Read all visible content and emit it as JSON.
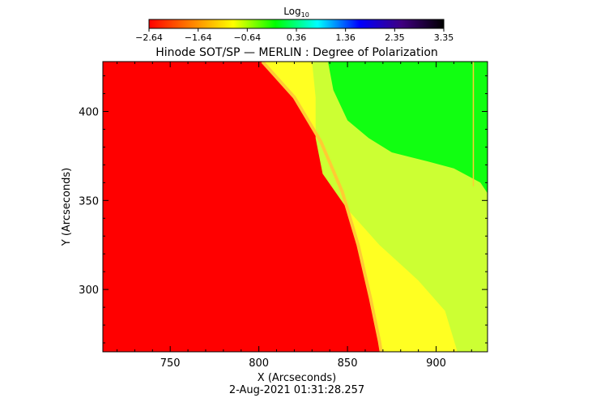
{
  "chart_data": {
    "type": "heatmap",
    "title": "Hinode SOT/SP — MERLIN : Degree of Polarization",
    "xlabel": "X (Arcseconds)",
    "ylabel": "Y (Arcseconds)",
    "timestamp": "2-Aug-2021 01:31:28.257",
    "xlim": [
      712,
      929
    ],
    "ylim": [
      265,
      428
    ],
    "x_ticks": [
      750,
      800,
      850,
      900
    ],
    "y_ticks": [
      300,
      350,
      400
    ],
    "colorbar": {
      "label": "Log",
      "label_subscript": "10",
      "range": [
        -2.64,
        3.35
      ],
      "ticks": [
        "−2.64",
        "−1.64",
        "−0.64",
        "0.36",
        "1.36",
        "2.35",
        "3.35"
      ],
      "colors": [
        "#ff0000",
        "#ff8000",
        "#ffff00",
        "#00ff00",
        "#00ffff",
        "#0000ff",
        "#400080",
        "#000000"
      ]
    },
    "regions": {
      "red": "#ff0000",
      "yellow": "#ffff22",
      "yellow_green": "#ccff33",
      "green": "#11ff11",
      "limb_line": "#ffcc33"
    },
    "limb": [
      [
        802,
        428
      ],
      [
        820,
        408
      ],
      [
        835,
        383
      ],
      [
        847,
        355
      ],
      [
        856,
        325
      ],
      [
        863,
        295
      ],
      [
        868,
        271
      ],
      [
        869,
        265
      ]
    ],
    "yellow_green_boundary": [
      [
        830,
        428
      ],
      [
        832,
        408
      ],
      [
        832,
        385
      ],
      [
        836,
        365
      ],
      [
        850,
        345
      ],
      [
        868,
        325
      ],
      [
        890,
        305
      ],
      [
        905,
        288
      ],
      [
        912,
        265
      ]
    ],
    "green_boundary": [
      [
        839,
        428
      ],
      [
        842,
        412
      ],
      [
        850,
        395
      ],
      [
        862,
        385
      ],
      [
        875,
        377
      ],
      [
        895,
        372
      ],
      [
        910,
        368
      ],
      [
        925,
        360
      ],
      [
        929,
        354
      ]
    ]
  }
}
